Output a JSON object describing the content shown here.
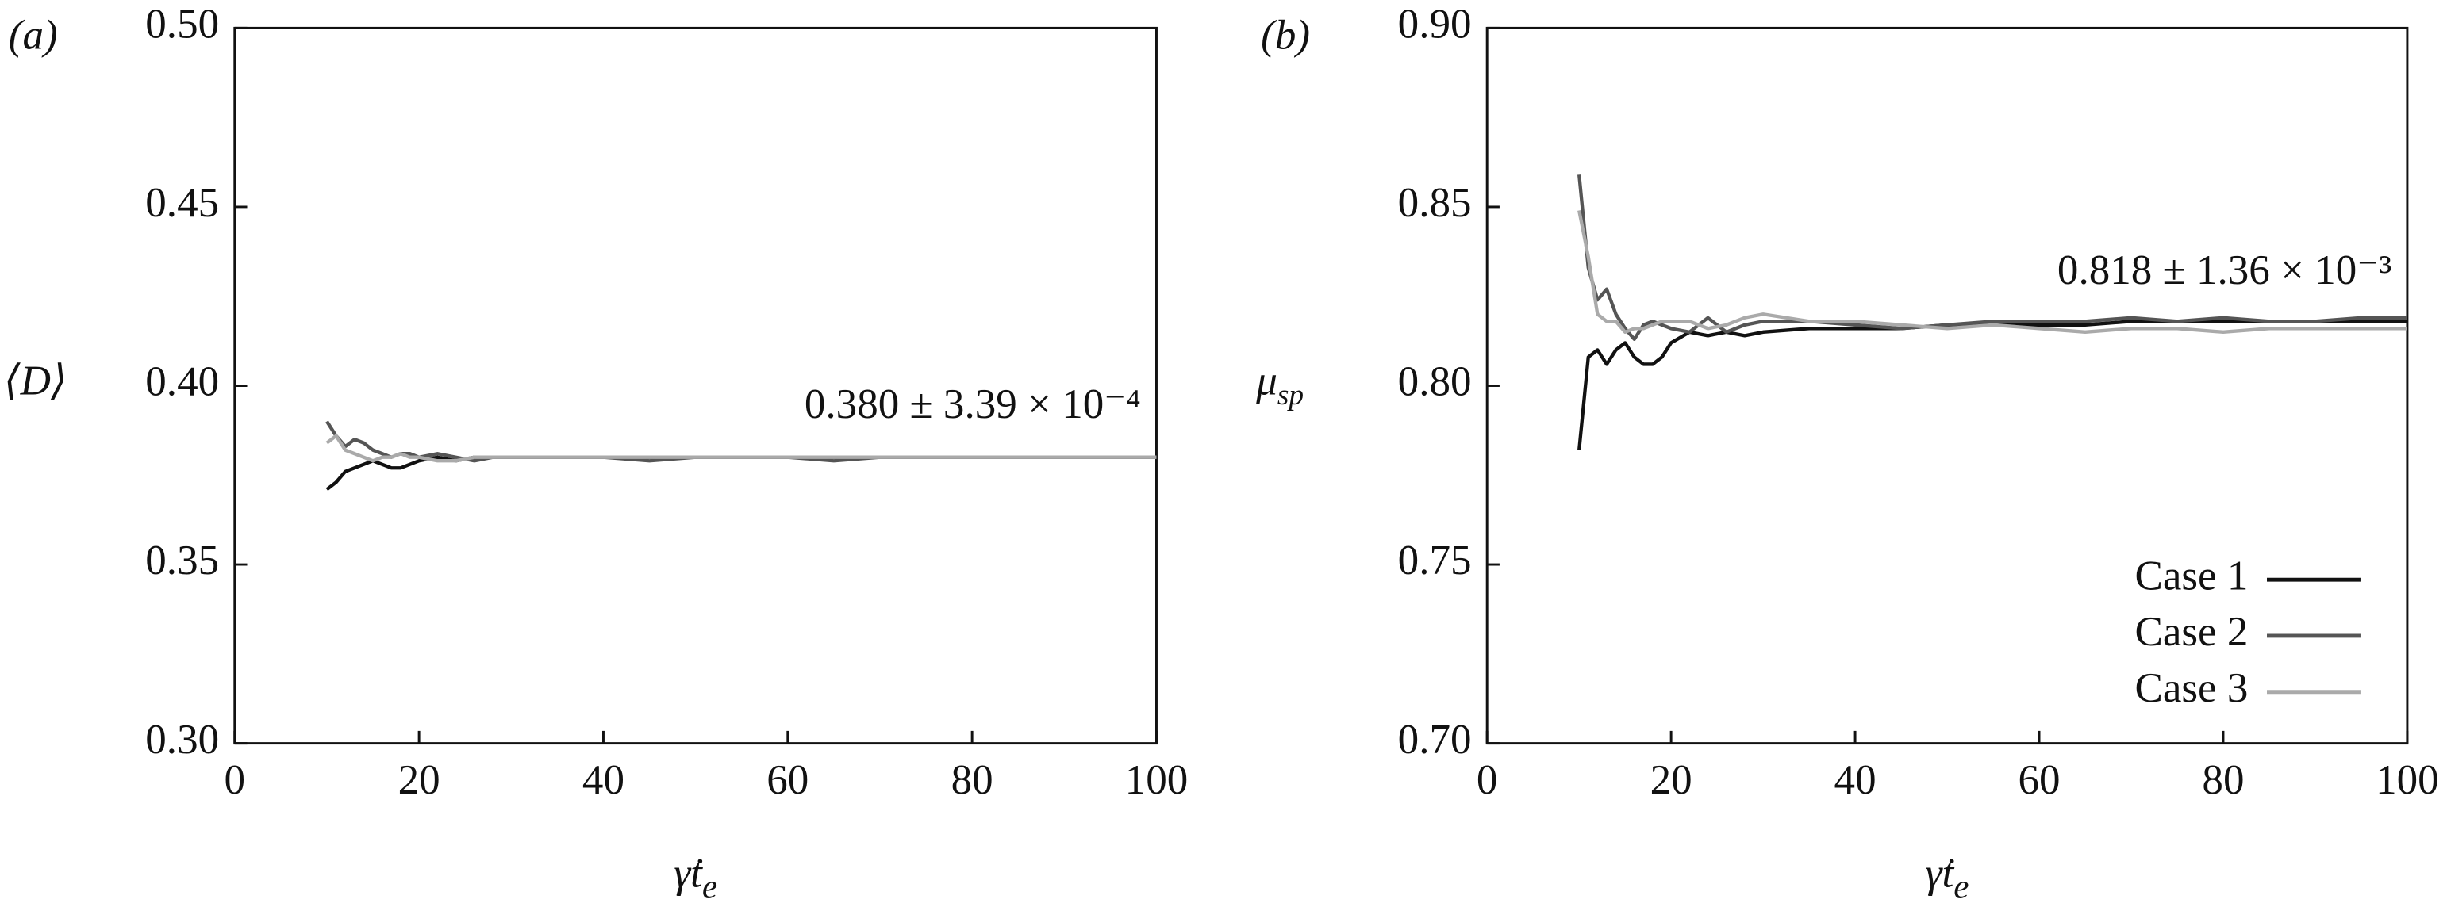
{
  "chart_data": [
    {
      "type": "line",
      "panel": "(a)",
      "ylabel": "⟨D⟩",
      "xlabel": "γ̇t",
      "xlabel_sub": "e",
      "annotation": "0.380 ± 3.39 × 10⁻⁴",
      "x": [
        10,
        11,
        12,
        13,
        14,
        15,
        16,
        17,
        18,
        19,
        20,
        22,
        24,
        26,
        28,
        30,
        35,
        40,
        45,
        50,
        55,
        60,
        65,
        70,
        75,
        80,
        85,
        90,
        95,
        100
      ],
      "xlim": [
        0,
        100
      ],
      "xticks": [
        0,
        20,
        40,
        60,
        80,
        100
      ],
      "ylim": [
        0.3,
        0.5
      ],
      "yticks": [
        {
          "value": 0.3,
          "label": "0.30"
        },
        0.35,
        {
          "value": 0.4,
          "label": "0.40"
        },
        0.45,
        {
          "value": 0.5,
          "label": "0.50"
        }
      ],
      "legend": false,
      "series": [
        {
          "color": "#111111",
          "values": [
            0.371,
            0.373,
            0.376,
            0.377,
            0.378,
            0.379,
            0.378,
            0.377,
            0.377,
            0.378,
            0.379,
            0.38,
            0.379,
            0.38,
            0.38,
            0.38,
            0.38,
            0.38,
            0.38,
            0.38,
            0.38,
            0.38,
            0.38,
            0.38,
            0.38,
            0.38,
            0.38,
            0.38,
            0.38,
            0.38
          ]
        },
        {
          "color": "#555555",
          "values": [
            0.39,
            0.386,
            0.383,
            0.385,
            0.384,
            0.382,
            0.381,
            0.38,
            0.381,
            0.381,
            0.38,
            0.381,
            0.38,
            0.379,
            0.38,
            0.38,
            0.38,
            0.38,
            0.379,
            0.38,
            0.38,
            0.38,
            0.379,
            0.38,
            0.38,
            0.38,
            0.38,
            0.38,
            0.38,
            0.38
          ]
        },
        {
          "color": "#aaaaaa",
          "values": [
            0.384,
            0.386,
            0.382,
            0.381,
            0.38,
            0.379,
            0.38,
            0.38,
            0.381,
            0.38,
            0.38,
            0.379,
            0.379,
            0.38,
            0.38,
            0.38,
            0.38,
            0.38,
            0.38,
            0.38,
            0.38,
            0.38,
            0.38,
            0.38,
            0.38,
            0.38,
            0.38,
            0.38,
            0.38,
            0.38
          ]
        }
      ]
    },
    {
      "type": "line",
      "panel": "(b)",
      "ylabel": "μ",
      "ylabel_sub": "sp",
      "xlabel": "γ̇t",
      "xlabel_sub": "e",
      "annotation": "0.818 ± 1.36 × 10⁻³",
      "x": [
        10,
        11,
        12,
        13,
        14,
        15,
        16,
        17,
        18,
        19,
        20,
        22,
        24,
        26,
        28,
        30,
        35,
        40,
        45,
        50,
        55,
        60,
        65,
        70,
        75,
        80,
        85,
        90,
        95,
        100
      ],
      "xlim": [
        0,
        100
      ],
      "xticks": [
        0,
        20,
        40,
        60,
        80,
        100
      ],
      "ylim": [
        0.7,
        0.9
      ],
      "yticks": [
        {
          "value": 0.7,
          "label": "0.70"
        },
        0.75,
        {
          "value": 0.8,
          "label": "0.80"
        },
        0.85,
        {
          "value": 0.9,
          "label": "0.90"
        }
      ],
      "legend": "lower right",
      "series": [
        {
          "name": "Case 1",
          "color": "#111111",
          "values": [
            0.782,
            0.808,
            0.81,
            0.806,
            0.81,
            0.812,
            0.808,
            0.806,
            0.806,
            0.808,
            0.812,
            0.815,
            0.814,
            0.815,
            0.814,
            0.815,
            0.816,
            0.816,
            0.816,
            0.817,
            0.817,
            0.817,
            0.817,
            0.818,
            0.818,
            0.818,
            0.818,
            0.818,
            0.818,
            0.818
          ]
        },
        {
          "name": "Case 2",
          "color": "#555555",
          "values": [
            0.859,
            0.833,
            0.824,
            0.827,
            0.82,
            0.816,
            0.813,
            0.817,
            0.818,
            0.817,
            0.816,
            0.815,
            0.819,
            0.815,
            0.817,
            0.818,
            0.818,
            0.817,
            0.816,
            0.817,
            0.818,
            0.818,
            0.818,
            0.819,
            0.818,
            0.819,
            0.818,
            0.818,
            0.819,
            0.819
          ]
        },
        {
          "name": "Case 3",
          "color": "#aaaaaa",
          "values": [
            0.849,
            0.836,
            0.82,
            0.818,
            0.818,
            0.815,
            0.816,
            0.816,
            0.817,
            0.818,
            0.818,
            0.818,
            0.816,
            0.817,
            0.819,
            0.82,
            0.818,
            0.818,
            0.817,
            0.816,
            0.817,
            0.816,
            0.815,
            0.816,
            0.816,
            0.815,
            0.816,
            0.816,
            0.816,
            0.816
          ]
        }
      ]
    }
  ]
}
